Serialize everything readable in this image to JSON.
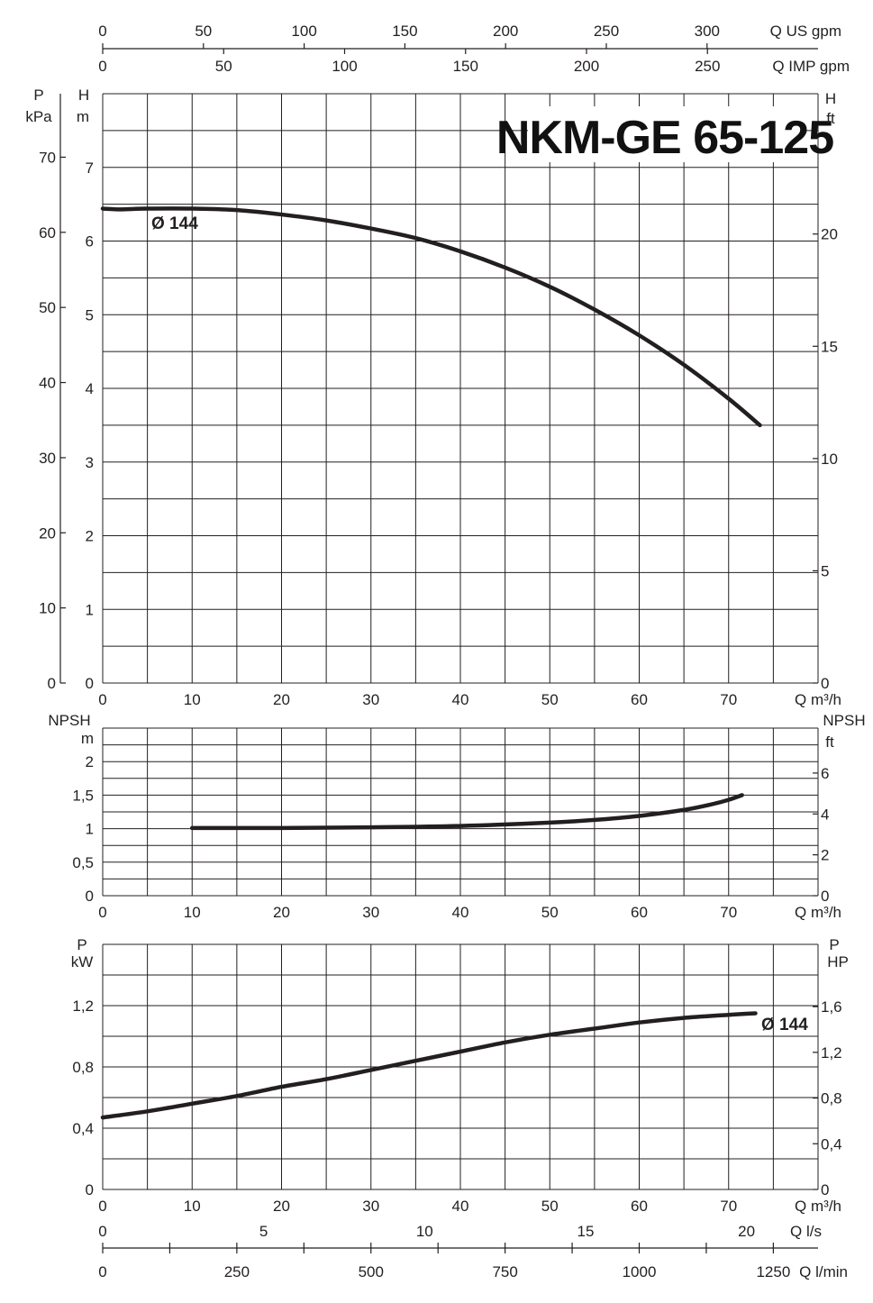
{
  "title": "NKM-GE 65-125",
  "curve_label": "Ø 144",
  "top_scales": {
    "us_gpm": {
      "label": "Q US gpm",
      "ticks": [
        "0",
        "50",
        "100",
        "150",
        "200",
        "250",
        "300"
      ]
    },
    "imp_gpm": {
      "label": "Q IMP gpm",
      "ticks": [
        "0",
        "50",
        "100",
        "150",
        "200",
        "250"
      ]
    }
  },
  "bottom_scales": {
    "ls": {
      "label": "Q l/s",
      "ticks": [
        "0",
        "5",
        "10",
        "15",
        "20"
      ]
    },
    "lmin": {
      "label": "Q l/min",
      "ticks": [
        "0",
        "250",
        "500",
        "750",
        "1000",
        "1250"
      ]
    }
  },
  "chart_data": [
    {
      "type": "line",
      "panel": "head",
      "title": "NKM-GE 65-125",
      "xlabel": "Q m³/h",
      "y_left_outer_label": [
        "P",
        "kPa"
      ],
      "y_left_label": [
        "H",
        "m"
      ],
      "y_right_label": [
        "H",
        "ft"
      ],
      "xlim": [
        0,
        80
      ],
      "ylim": [
        0,
        8
      ],
      "x_ticks": [
        "0",
        "10",
        "20",
        "30",
        "40",
        "50",
        "60",
        "70"
      ],
      "y_ticks": [
        "0",
        "1",
        "2",
        "3",
        "4",
        "5",
        "6",
        "7"
      ],
      "kpa_ticks": [
        "0",
        "10",
        "20",
        "30",
        "40",
        "50",
        "60",
        "70"
      ],
      "ft_ticks": [
        "0",
        "5",
        "10",
        "15",
        "20"
      ],
      "grid": true,
      "series": [
        {
          "name": "Ø 144",
          "x": [
            0,
            2,
            5,
            10,
            15,
            20,
            25,
            30,
            35,
            40,
            45,
            50,
            55,
            60,
            65,
            70,
            73.5
          ],
          "y": [
            6.44,
            6.43,
            6.44,
            6.44,
            6.42,
            6.36,
            6.28,
            6.17,
            6.04,
            5.86,
            5.64,
            5.38,
            5.07,
            4.72,
            4.32,
            3.86,
            3.5
          ]
        }
      ]
    },
    {
      "type": "line",
      "panel": "npsh",
      "xlabel": "Q m³/h",
      "y_left_label": [
        "NPSH",
        "m"
      ],
      "y_right_label": [
        "NPSH",
        "ft"
      ],
      "xlim": [
        0,
        80
      ],
      "ylim": [
        0,
        2.5
      ],
      "x_ticks": [
        "0",
        "10",
        "20",
        "30",
        "40",
        "50",
        "60",
        "70"
      ],
      "y_ticks": [
        "0",
        "0,5",
        "1",
        "1,5",
        "2"
      ],
      "ft_ticks": [
        "0",
        "2",
        "4",
        "6"
      ],
      "grid": true,
      "series": [
        {
          "name": "",
          "x": [
            10,
            20,
            30,
            40,
            50,
            55,
            60,
            65,
            68,
            70,
            71.5
          ],
          "y": [
            1.01,
            1.01,
            1.02,
            1.04,
            1.09,
            1.13,
            1.19,
            1.28,
            1.36,
            1.43,
            1.5
          ]
        }
      ]
    },
    {
      "type": "line",
      "panel": "power",
      "xlabel": "Q m³/h",
      "y_left_label": [
        "P",
        "kW"
      ],
      "y_right_label": [
        "P",
        "HP"
      ],
      "xlim": [
        0,
        80
      ],
      "ylim": [
        0,
        1.6
      ],
      "x_ticks": [
        "0",
        "10",
        "20",
        "30",
        "40",
        "50",
        "60",
        "70"
      ],
      "y_ticks": [
        "0",
        "0,4",
        "0,8",
        "1,2"
      ],
      "hp_ticks": [
        "0",
        "0,4",
        "0,8",
        "1,2",
        "1,6"
      ],
      "grid": true,
      "series": [
        {
          "name": "Ø 144",
          "x": [
            0,
            5,
            10,
            15,
            20,
            25,
            30,
            35,
            40,
            45,
            50,
            55,
            60,
            65,
            70,
            73
          ],
          "y": [
            0.47,
            0.51,
            0.56,
            0.61,
            0.67,
            0.72,
            0.78,
            0.84,
            0.9,
            0.96,
            1.01,
            1.05,
            1.09,
            1.12,
            1.14,
            1.15
          ]
        }
      ]
    }
  ]
}
